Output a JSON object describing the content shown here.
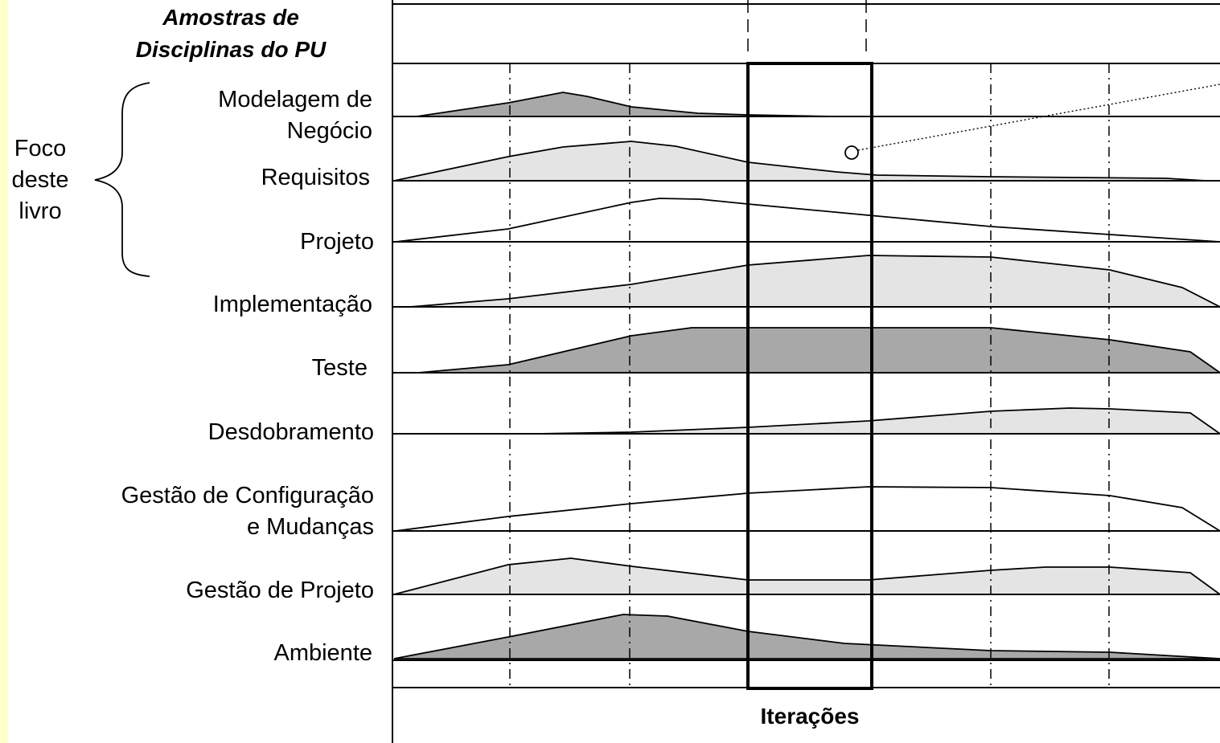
{
  "header": {
    "line1": "Amostras de",
    "line2": "Disciplinas do PU"
  },
  "focus": {
    "line1": "Foco",
    "line2": "deste",
    "line3": "livro"
  },
  "x_label": "Iterações",
  "disciplines": [
    {
      "lines": [
        "Modelagem de",
        "Negócio"
      ],
      "shade": "#a8a8a8"
    },
    {
      "lines": [
        "Requisitos"
      ],
      "shade": "#e4e4e4"
    },
    {
      "lines": [
        "Projeto"
      ],
      "shade": "#ffffff"
    },
    {
      "lines": [
        "Implementação"
      ],
      "shade": "#e4e4e4"
    },
    {
      "lines": [
        "Teste"
      ],
      "shade": "#a8a8a8"
    },
    {
      "lines": [
        "Desdobramento"
      ],
      "shade": "#e4e4e4"
    },
    {
      "lines": [
        "Gestão de Configuração",
        "e Mudanças"
      ],
      "shade": "#ffffff"
    },
    {
      "lines": [
        "Gestão de Projeto"
      ],
      "shade": "#e4e4e4"
    },
    {
      "lines": [
        "Ambiente"
      ],
      "shade": "#a8a8a8"
    }
  ],
  "colors": {
    "line": "#000000",
    "dark_fill": "#a8a8a8",
    "light_fill": "#e4e4e4",
    "margin": "#ffffcc"
  }
}
